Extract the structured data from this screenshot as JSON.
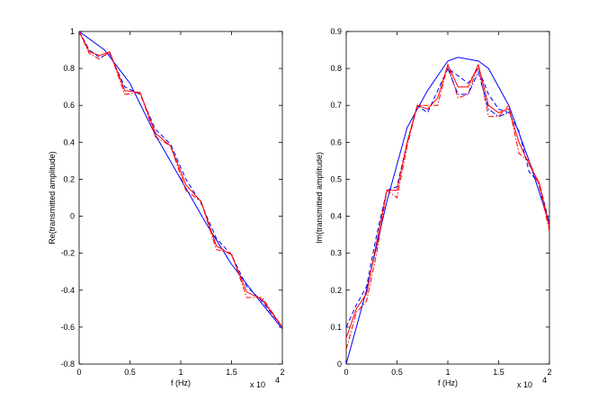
{
  "chart_data": [
    {
      "type": "line",
      "xlabel": "f (Hz)",
      "ylabel": "Re(transmitted amplitude)",
      "x_multiplier_label": "x 10",
      "x_multiplier_exp": "4",
      "xlim": [
        0,
        2
      ],
      "ylim": [
        -0.8,
        1
      ],
      "xticks": [
        "0",
        "0.5",
        "1",
        "1.5",
        "2"
      ],
      "yticks": [
        "-0.8",
        "-0.6",
        "-0.4",
        "-0.2",
        "0",
        "0.2",
        "0.4",
        "0.6",
        "0.8",
        "1"
      ],
      "series": [
        {
          "color": "#0000ff",
          "style": "solid",
          "x": [
            0,
            0.25,
            0.5,
            0.75,
            1.0,
            1.25,
            1.5,
            1.75,
            2.0
          ],
          "y": [
            1.0,
            0.9,
            0.72,
            0.44,
            0.2,
            -0.04,
            -0.26,
            -0.44,
            -0.61
          ]
        },
        {
          "color": "#0000ff",
          "style": "dashed",
          "x": [
            0,
            0.1,
            0.2,
            0.3,
            0.45,
            0.6,
            0.75,
            0.9,
            1.05,
            1.2,
            1.35,
            1.5,
            1.65,
            1.8,
            2.0
          ],
          "y": [
            1.0,
            0.9,
            0.86,
            0.88,
            0.7,
            0.66,
            0.47,
            0.39,
            0.2,
            0.07,
            -0.12,
            -0.21,
            -0.38,
            -0.46,
            -0.6
          ]
        },
        {
          "color": "#ff0000",
          "style": "solid",
          "x": [
            0,
            0.1,
            0.2,
            0.3,
            0.45,
            0.6,
            0.75,
            0.9,
            1.05,
            1.2,
            1.35,
            1.5,
            1.65,
            1.8,
            2.0
          ],
          "y": [
            1.0,
            0.89,
            0.87,
            0.89,
            0.68,
            0.67,
            0.45,
            0.38,
            0.17,
            0.08,
            -0.16,
            -0.21,
            -0.41,
            -0.45,
            -0.6
          ]
        },
        {
          "color": "#ff0000",
          "style": "dashdot",
          "x": [
            0,
            0.1,
            0.2,
            0.3,
            0.45,
            0.6,
            0.75,
            0.9,
            1.05,
            1.2,
            1.35,
            1.5,
            1.65,
            1.8,
            2.0
          ],
          "y": [
            1.0,
            0.88,
            0.85,
            0.89,
            0.66,
            0.67,
            0.43,
            0.38,
            0.14,
            0.08,
            -0.18,
            -0.2,
            -0.44,
            -0.44,
            -0.6
          ]
        }
      ]
    },
    {
      "type": "line",
      "xlabel": "f (Hz)",
      "ylabel": "Im(transmitted amplitude)",
      "x_multiplier_label": "x 10",
      "x_multiplier_exp": "4",
      "xlim": [
        0,
        2
      ],
      "ylim": [
        0,
        0.9
      ],
      "xticks": [
        "0",
        "0.5",
        "1",
        "1.5",
        "2"
      ],
      "yticks": [
        "0",
        "0.1",
        "0.2",
        "0.3",
        "0.4",
        "0.5",
        "0.6",
        "0.7",
        "0.8",
        "0.9"
      ],
      "series": [
        {
          "color": "#0000ff",
          "style": "solid",
          "x": [
            0,
            0.2,
            0.4,
            0.6,
            0.8,
            1.0,
            1.1,
            1.3,
            1.4,
            1.6,
            1.8,
            2.0
          ],
          "y": [
            0.0,
            0.2,
            0.44,
            0.64,
            0.74,
            0.82,
            0.83,
            0.82,
            0.8,
            0.7,
            0.55,
            0.38
          ]
        },
        {
          "color": "#0000ff",
          "style": "dashed",
          "x": [
            0,
            0.1,
            0.2,
            0.3,
            0.4,
            0.5,
            0.6,
            0.7,
            0.8,
            0.9,
            1.0,
            1.1,
            1.2,
            1.3,
            1.4,
            1.5,
            1.6,
            1.7,
            1.8,
            1.9,
            2.0
          ],
          "y": [
            0.1,
            0.16,
            0.21,
            0.35,
            0.47,
            0.48,
            0.6,
            0.7,
            0.68,
            0.74,
            0.8,
            0.78,
            0.76,
            0.8,
            0.73,
            0.69,
            0.68,
            0.63,
            0.52,
            0.49,
            0.38
          ]
        },
        {
          "color": "#ff0000",
          "style": "solid",
          "x": [
            0,
            0.1,
            0.2,
            0.3,
            0.4,
            0.5,
            0.6,
            0.7,
            0.8,
            0.9,
            1.0,
            1.1,
            1.2,
            1.3,
            1.4,
            1.5,
            1.6,
            1.7,
            1.8,
            1.9,
            2.0
          ],
          "y": [
            0.07,
            0.15,
            0.19,
            0.33,
            0.47,
            0.47,
            0.6,
            0.7,
            0.69,
            0.72,
            0.81,
            0.75,
            0.75,
            0.81,
            0.7,
            0.68,
            0.69,
            0.6,
            0.54,
            0.49,
            0.37
          ]
        },
        {
          "color": "#ff0000",
          "style": "dashdot",
          "x": [
            0,
            0.1,
            0.2,
            0.3,
            0.4,
            0.5,
            0.6,
            0.7,
            0.8,
            0.9,
            1.0,
            1.1,
            1.2,
            1.3,
            1.4,
            1.5,
            1.6,
            1.7,
            1.8,
            1.9,
            2.0
          ],
          "y": [
            0.04,
            0.14,
            0.17,
            0.3,
            0.47,
            0.45,
            0.59,
            0.7,
            0.7,
            0.7,
            0.81,
            0.72,
            0.73,
            0.81,
            0.67,
            0.67,
            0.7,
            0.57,
            0.55,
            0.48,
            0.36
          ]
        },
        {
          "color": "#0000ff",
          "style": "dashdot",
          "x": [
            1.0,
            1.1,
            1.2,
            1.3,
            1.4,
            1.5,
            1.6
          ],
          "y": [
            0.8,
            0.73,
            0.73,
            0.79,
            0.69,
            0.67,
            0.68
          ]
        }
      ]
    }
  ]
}
